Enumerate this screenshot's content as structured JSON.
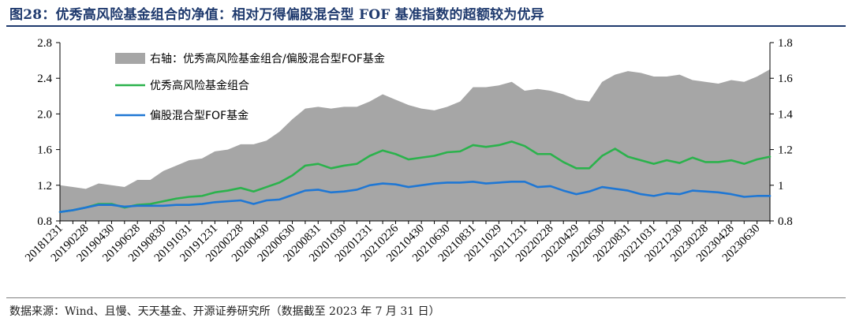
{
  "header": {
    "title": "图28：优秀高风险基金组合的净值：相对万得偏股混合型 FOF 基准指数的超额较为优异"
  },
  "footer": {
    "source": "数据来源：Wind、且慢、天天基金、开源证券研究所（数据截至 2023 年 7 月 31 日）"
  },
  "chart_data": {
    "type": "line",
    "x": [
      "20181231",
      "20190131",
      "20190228",
      "20190329",
      "20190430",
      "20190531",
      "20190628",
      "20190731",
      "20190830",
      "20190930",
      "20191031",
      "20191129",
      "20191231",
      "20200123",
      "20200228",
      "20200331",
      "20200430",
      "20200529",
      "20200630",
      "20200731",
      "20200831",
      "20200930",
      "20201030",
      "20201130",
      "20201231",
      "20210129",
      "20210226",
      "20210331",
      "20210430",
      "20210531",
      "20210630",
      "20210730",
      "20210831",
      "20210930",
      "20211029",
      "20211130",
      "20211231",
      "20220128",
      "20220228",
      "20220331",
      "20220429",
      "20220531",
      "20220630",
      "20220729",
      "20220831",
      "20220930",
      "20221031",
      "20221130",
      "20221230",
      "20230131",
      "20230228",
      "20230331",
      "20230428",
      "20230531",
      "20230630",
      "20230731"
    ],
    "x_tick_labels": [
      "20181231",
      "20190228",
      "20190430",
      "20190628",
      "20190830",
      "20191031",
      "20191231",
      "20200228",
      "20200430",
      "20200630",
      "20200831",
      "20201030",
      "20201231",
      "20210226",
      "20210430",
      "20210630",
      "20210831",
      "20211029",
      "20211231",
      "20220228",
      "20220429",
      "20220630",
      "20220831",
      "20221031",
      "20221230",
      "20230228",
      "20230428",
      "20230630"
    ],
    "y_left": {
      "lim": [
        0.8,
        2.8
      ],
      "ticks": [
        "0.8",
        "1.2",
        "1.6",
        "2.0",
        "2.4",
        "2.8"
      ]
    },
    "y_right": {
      "lim": [
        0.8,
        1.8
      ],
      "ticks": [
        "0.8",
        "1",
        "1.2",
        "1.4",
        "1.6",
        "1.8"
      ]
    },
    "grid": false,
    "legend_position": "top-left",
    "series": [
      {
        "name": "右轴：优秀高风险基金组合/偏股混合型FOF基金",
        "type": "area",
        "axis": "right",
        "color": "#a6a6a6",
        "values": [
          1.0,
          0.99,
          0.98,
          1.01,
          1.0,
          0.99,
          1.03,
          1.03,
          1.08,
          1.11,
          1.14,
          1.15,
          1.19,
          1.2,
          1.23,
          1.23,
          1.25,
          1.3,
          1.37,
          1.43,
          1.44,
          1.43,
          1.44,
          1.44,
          1.47,
          1.51,
          1.48,
          1.45,
          1.43,
          1.42,
          1.44,
          1.47,
          1.55,
          1.55,
          1.56,
          1.58,
          1.53,
          1.54,
          1.53,
          1.51,
          1.48,
          1.47,
          1.58,
          1.62,
          1.64,
          1.63,
          1.61,
          1.61,
          1.62,
          1.59,
          1.58,
          1.57,
          1.59,
          1.58,
          1.61,
          1.65
        ]
      },
      {
        "name": "优秀高风险基金组合",
        "type": "line",
        "axis": "left",
        "color": "#2bb24c",
        "values": [
          0.9,
          0.92,
          0.95,
          0.99,
          0.99,
          0.95,
          0.98,
          0.99,
          1.02,
          1.05,
          1.07,
          1.08,
          1.12,
          1.14,
          1.17,
          1.13,
          1.18,
          1.23,
          1.31,
          1.42,
          1.44,
          1.39,
          1.42,
          1.44,
          1.53,
          1.59,
          1.55,
          1.49,
          1.51,
          1.53,
          1.57,
          1.58,
          1.65,
          1.63,
          1.65,
          1.69,
          1.64,
          1.55,
          1.55,
          1.46,
          1.39,
          1.39,
          1.53,
          1.61,
          1.52,
          1.48,
          1.44,
          1.48,
          1.45,
          1.51,
          1.46,
          1.46,
          1.48,
          1.44,
          1.49,
          1.52
        ]
      },
      {
        "name": "偏股混合型FOF基金",
        "type": "line",
        "axis": "left",
        "color": "#1f77d4",
        "values": [
          0.9,
          0.92,
          0.95,
          0.98,
          0.98,
          0.96,
          0.97,
          0.97,
          0.97,
          0.98,
          0.98,
          0.99,
          1.01,
          1.02,
          1.03,
          0.99,
          1.03,
          1.04,
          1.09,
          1.14,
          1.15,
          1.12,
          1.13,
          1.15,
          1.2,
          1.22,
          1.21,
          1.18,
          1.2,
          1.22,
          1.23,
          1.23,
          1.24,
          1.22,
          1.23,
          1.24,
          1.24,
          1.18,
          1.19,
          1.14,
          1.1,
          1.13,
          1.18,
          1.16,
          1.14,
          1.1,
          1.08,
          1.11,
          1.1,
          1.14,
          1.13,
          1.12,
          1.1,
          1.07,
          1.08,
          1.08
        ]
      }
    ]
  }
}
